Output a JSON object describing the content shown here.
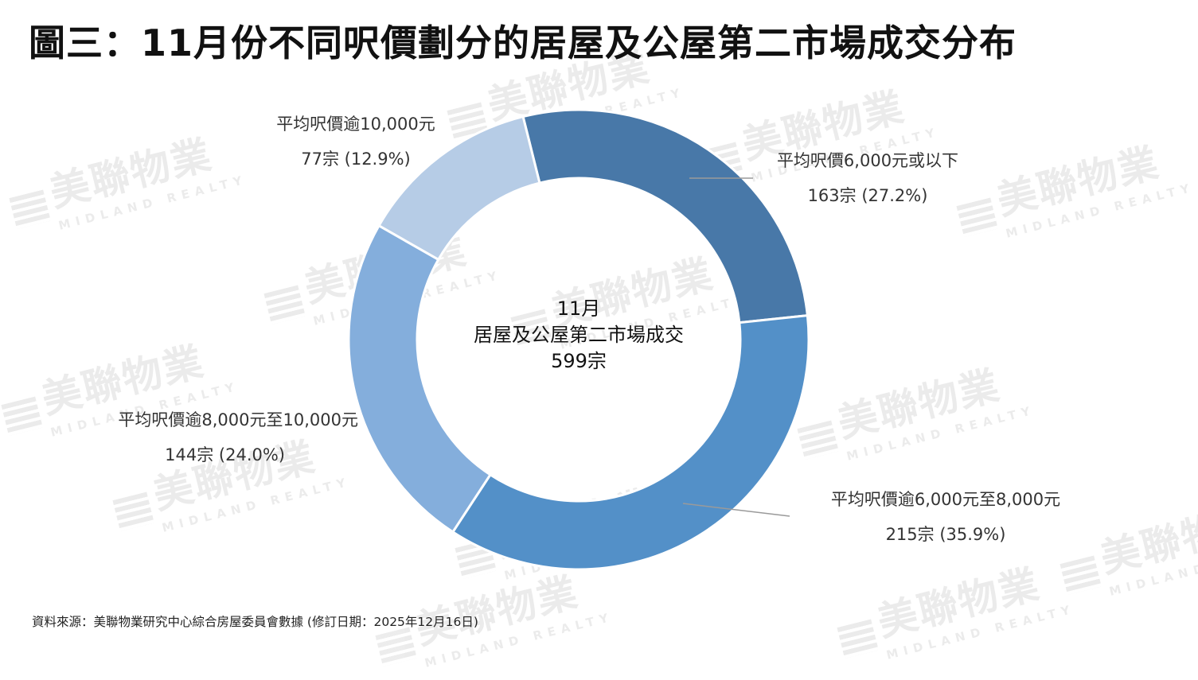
{
  "title": "圖三：11月份不同呎價劃分的居屋及公屋第二市場成交分布",
  "watermark": {
    "main": "美聯物業",
    "sub": "MIDLAND REALTY"
  },
  "chart_data": {
    "type": "pie",
    "donut": true,
    "center": {
      "line1": "11月",
      "line2": "居屋及公屋第二市場成交",
      "line3": "599宗"
    },
    "slices": [
      {
        "label": "平均呎價6,000元或以下",
        "value": 163,
        "value_text": "163宗 (27.2%)",
        "color": "#4878A8"
      },
      {
        "label": "平均呎價逾6,000元至8,000元",
        "value": 215,
        "value_text": "215宗 (35.9%)",
        "color": "#5390C8"
      },
      {
        "label": "平均呎價逾8,000元至10,000元",
        "value": 144,
        "value_text": "144宗 (24.0%)",
        "color": "#84AEDC"
      },
      {
        "label": "平均呎價逾10,000元",
        "value": 77,
        "value_text": "77宗 (12.9%)",
        "color": "#B6CCE6"
      }
    ]
  },
  "source": "資料來源：美聯物業研究中心綜合房屋委員會數據 (修訂日期：2025年12月16日)"
}
